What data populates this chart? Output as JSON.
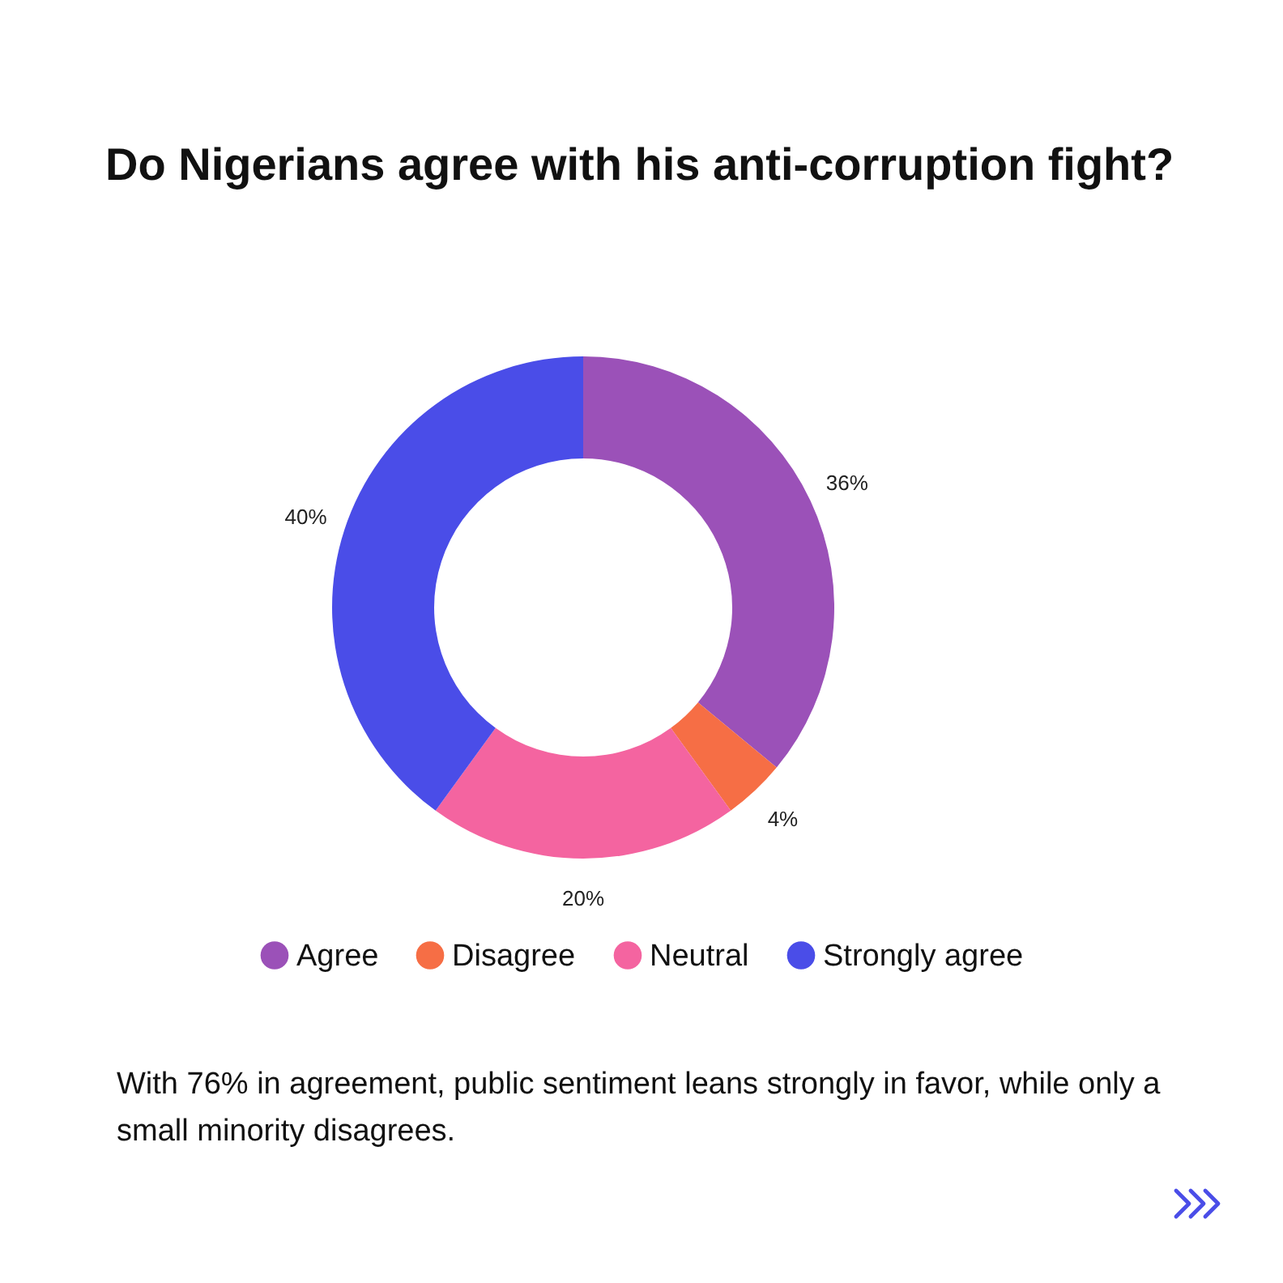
{
  "chart_data": {
    "type": "donut",
    "title": "Do Nigerians agree with his anti-corruption fight?",
    "categories": [
      "Agree",
      "Disagree",
      "Neutral",
      "Strongly agree"
    ],
    "values": [
      36,
      4,
      20,
      40
    ],
    "value_labels": [
      "36%",
      "4%",
      "20%",
      "40%"
    ],
    "colors": [
      "#9b51b8",
      "#f66e45",
      "#f464a0",
      "#4a4de8"
    ],
    "legend": "bottom",
    "annotations": [
      "With 76% in agreement, public sentiment leans strongly in favor, while only a small minority disagrees."
    ]
  }
}
